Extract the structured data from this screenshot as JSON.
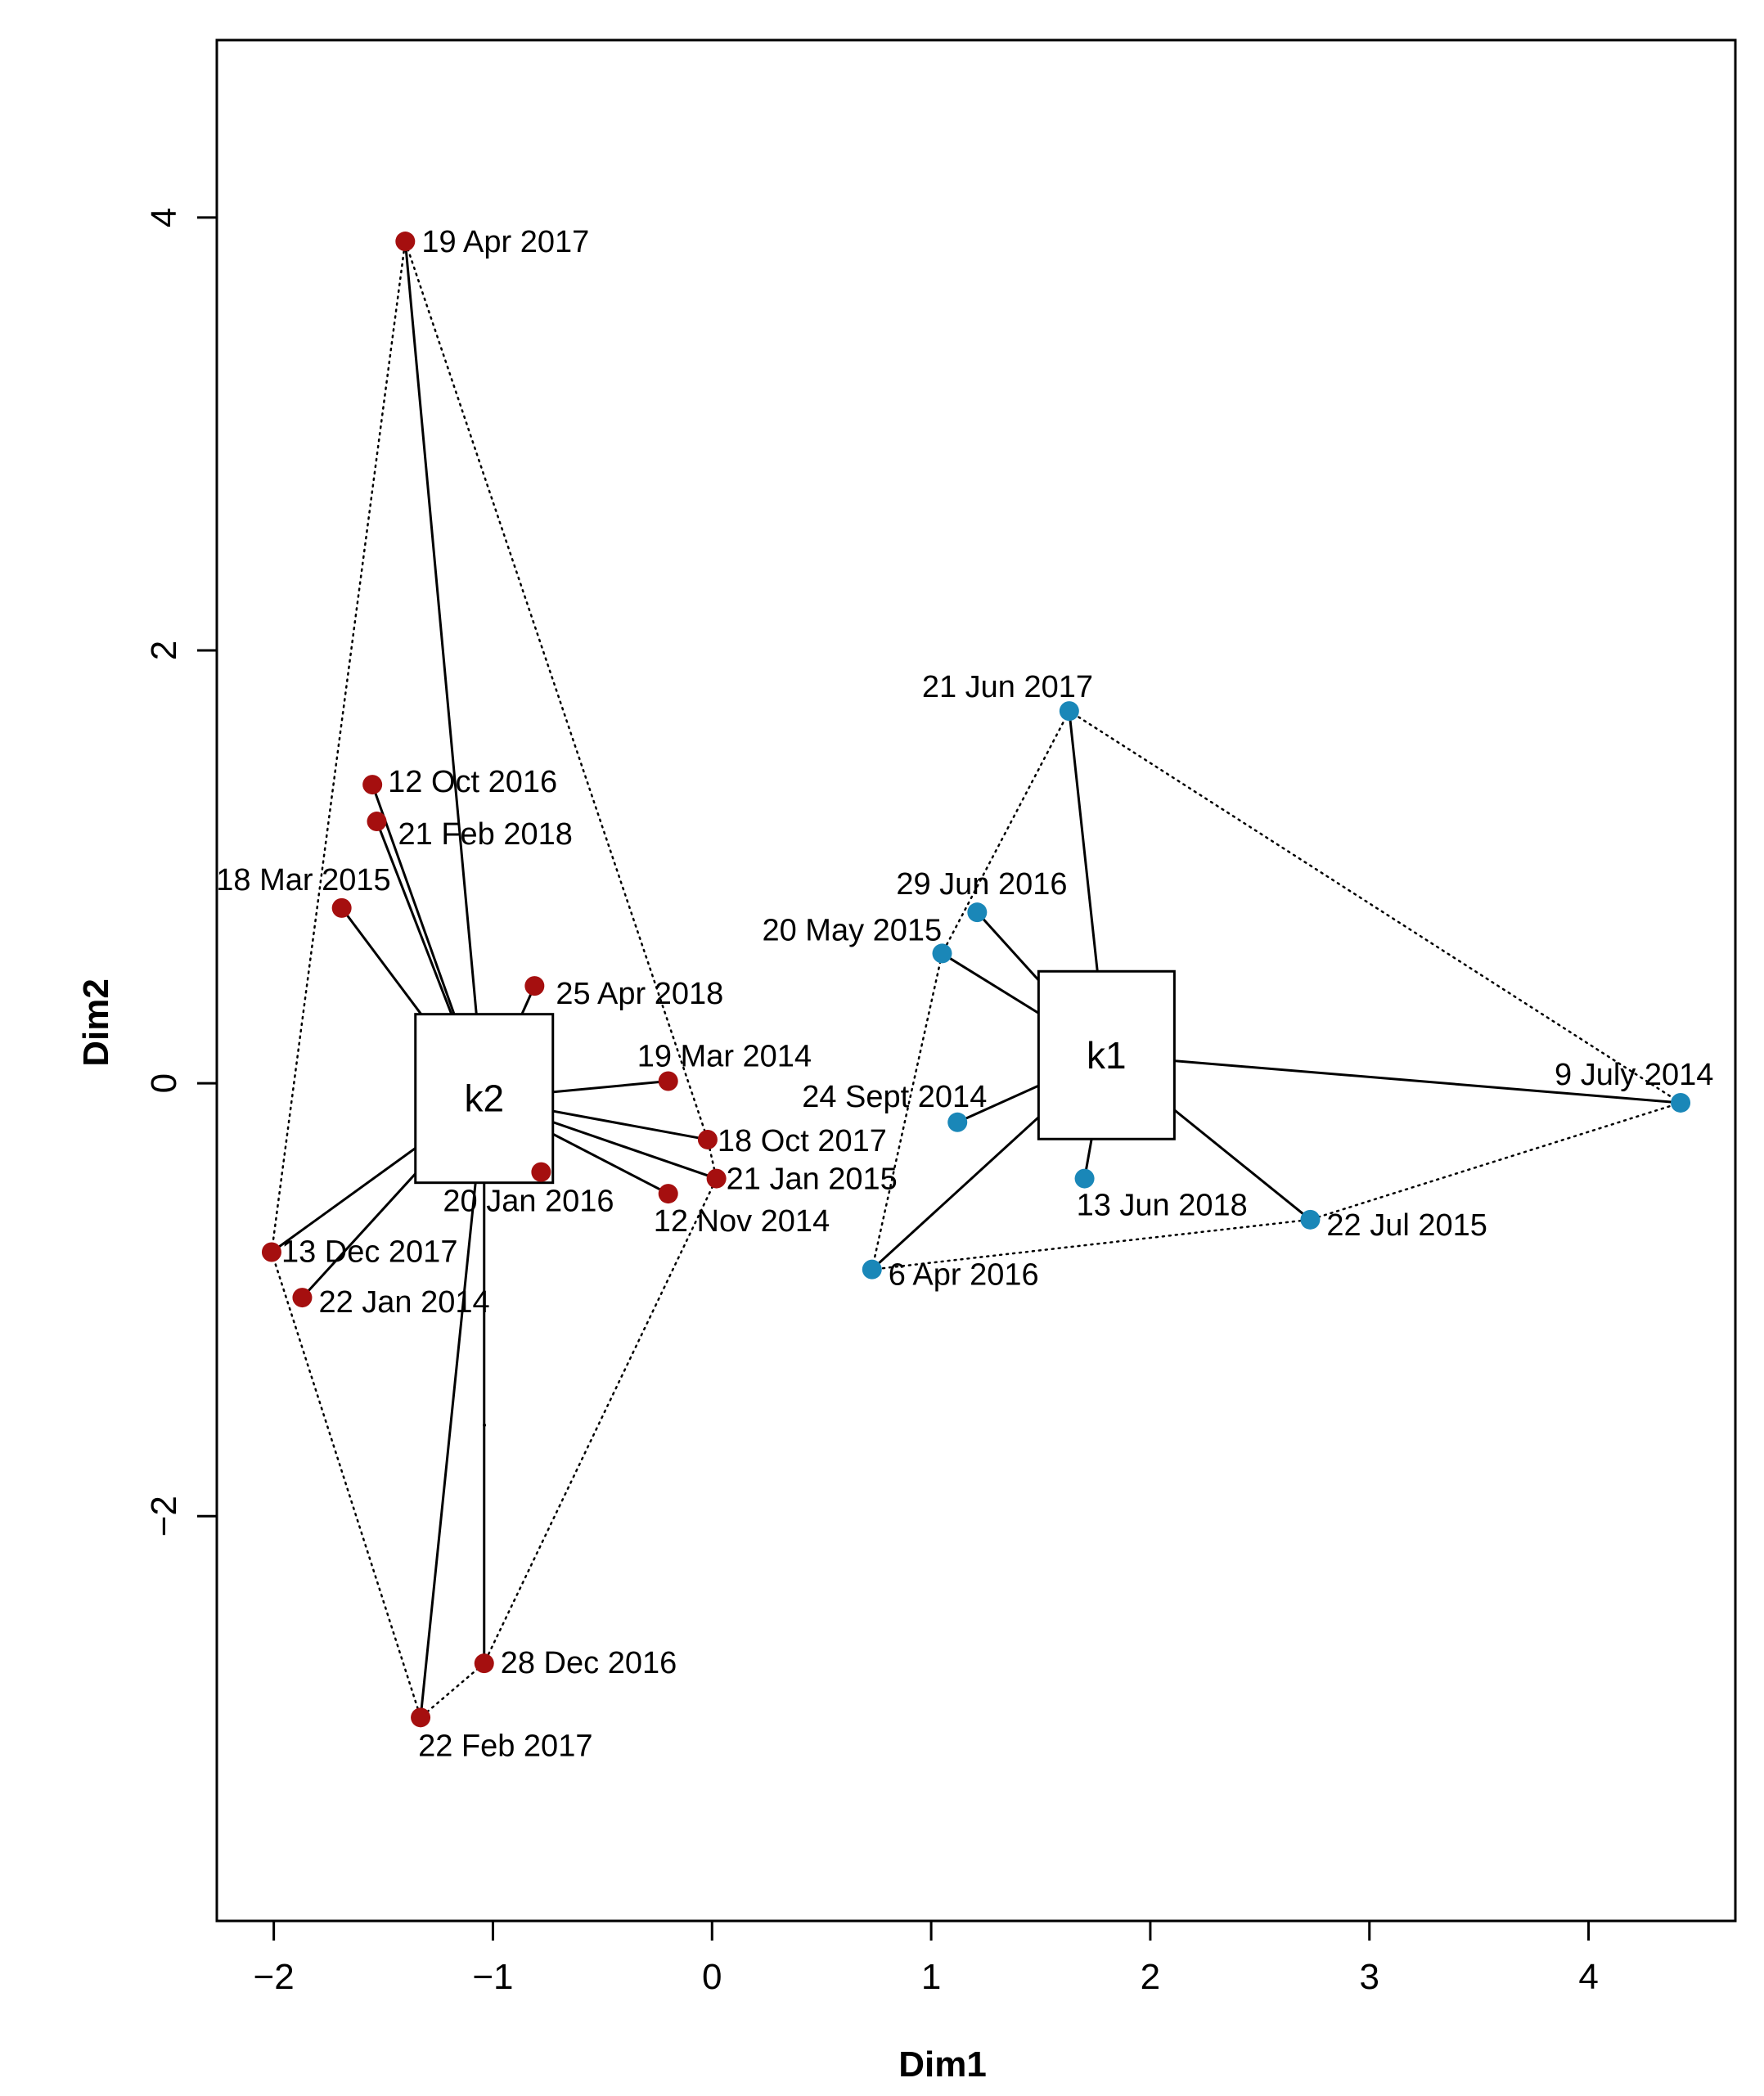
{
  "chart_data": {
    "type": "scatter",
    "title": "",
    "xlabel": "Dim1",
    "ylabel": "Dim2",
    "xlim": [
      -2.26,
      4.67
    ],
    "ylim": [
      -3.87,
      4.82
    ],
    "xticks": [
      -2,
      -1,
      0,
      1,
      2,
      3,
      4
    ],
    "yticks": [
      -2,
      0,
      2,
      4
    ],
    "xtick_labels": [
      "−2",
      "−1",
      "0",
      "1",
      "2",
      "3",
      "4"
    ],
    "ytick_labels": [
      "−2",
      "0",
      "2",
      "4"
    ],
    "colors": {
      "k2": "#a50f0f",
      "k1": "#1a87b8"
    },
    "clusters": [
      {
        "name": "k2",
        "centroid": {
          "x": -1.04,
          "y": -0.07
        },
        "points": [
          {
            "label": "19 Apr 2017",
            "x": -1.4,
            "y": 3.89
          },
          {
            "label": "12 Oct 2016",
            "x": -1.55,
            "y": 1.38
          },
          {
            "label": "21 Feb 2018",
            "x": -1.53,
            "y": 1.21
          },
          {
            "label": "18 Mar 2015",
            "x": -1.69,
            "y": 0.81
          },
          {
            "label": "25 Apr 2018",
            "x": -0.81,
            "y": 0.45
          },
          {
            "label": "19 Mar 2014",
            "x": -0.2,
            "y": 0.01
          },
          {
            "label": "18 Oct 2017",
            "x": -0.02,
            "y": -0.26
          },
          {
            "label": "21 Jan 2015",
            "x": 0.02,
            "y": -0.44
          },
          {
            "label": "12 Nov 2014",
            "x": -0.2,
            "y": -0.51
          },
          {
            "label": "20 Jan 2016",
            "x": -0.78,
            "y": -0.41
          },
          {
            "label": "13 Dec 2017",
            "x": -2.01,
            "y": -0.78
          },
          {
            "label": "22 Jan 2014",
            "x": -1.87,
            "y": -0.99
          },
          {
            "label": "28 Dec 2016",
            "x": -1.04,
            "y": -2.68
          },
          {
            "label": "22 Feb 2017",
            "x": -1.33,
            "y": -2.93
          }
        ]
      },
      {
        "name": "k1",
        "centroid": {
          "x": 1.8,
          "y": 0.13
        },
        "points": [
          {
            "label": "21 Jun 2017",
            "x": 1.63,
            "y": 1.72
          },
          {
            "label": "29 Jun 2016",
            "x": 1.21,
            "y": 0.79
          },
          {
            "label": "20 May 2015",
            "x": 1.05,
            "y": 0.6
          },
          {
            "label": "24 Sept 2014",
            "x": 1.12,
            "y": -0.18
          },
          {
            "label": "13 Jun 2018",
            "x": 1.7,
            "y": -0.44
          },
          {
            "label": "22 Jul 2015",
            "x": 2.73,
            "y": -0.63
          },
          {
            "label": "6 Apr 2016",
            "x": 0.73,
            "y": -0.86
          },
          {
            "label": "9 July 2014",
            "x": 4.42,
            "y": -0.09
          }
        ]
      }
    ]
  }
}
